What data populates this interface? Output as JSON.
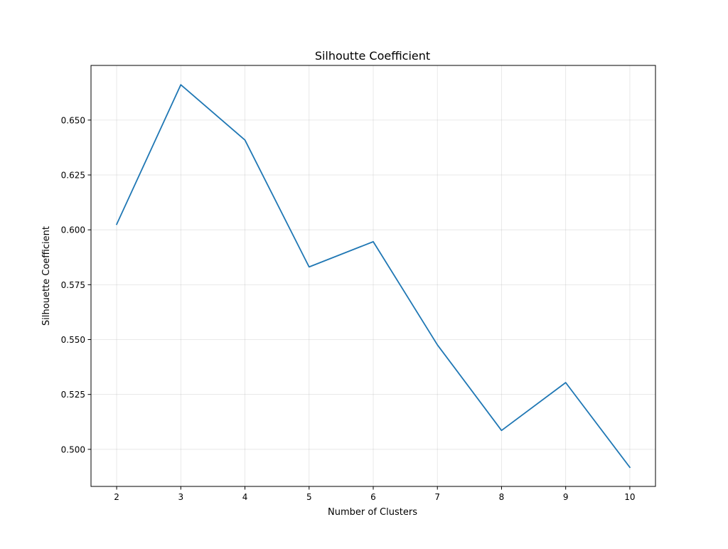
{
  "chart_data": {
    "type": "line",
    "title": "Silhoutte Coefficient",
    "xlabel": "Number of Clusters",
    "ylabel": "Silhouette Coefficient",
    "x": [
      2,
      3,
      4,
      5,
      6,
      7,
      8,
      9,
      10
    ],
    "series": [
      {
        "values": [
          0.6025,
          0.6661,
          0.6409,
          0.5831,
          0.5946,
          0.5476,
          0.5086,
          0.5304,
          0.4918
        ],
        "color": "#1f77b4"
      }
    ],
    "xticks": [
      2,
      3,
      4,
      5,
      6,
      7,
      8,
      9,
      10
    ],
    "yticks": [
      0.5,
      0.525,
      0.55,
      0.575,
      0.6,
      0.625,
      0.65
    ],
    "ytick_labels": [
      "0.500",
      "0.525",
      "0.550",
      "0.575",
      "0.600",
      "0.625",
      "0.650"
    ],
    "xlim": [
      1.6,
      10.4
    ],
    "ylim": [
      0.4831,
      0.6749
    ],
    "grid": true
  }
}
